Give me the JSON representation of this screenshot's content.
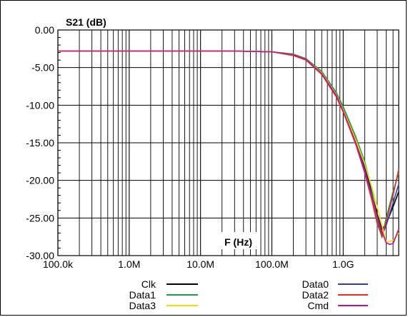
{
  "chart_data": {
    "type": "line",
    "ylabel": "S21 (dB)",
    "xlabel": "F (Hz)",
    "x_scale": "log",
    "xlim": [
      100000,
      6000000000
    ],
    "ylim": [
      -30,
      0
    ],
    "grid": true,
    "x_ticks": [
      {
        "value": 100000,
        "label": "100.0k"
      },
      {
        "value": 1000000,
        "label": "1.0M"
      },
      {
        "value": 10000000,
        "label": "10.0M"
      },
      {
        "value": 100000000,
        "label": "100.0M"
      },
      {
        "value": 1000000000,
        "label": "1.0G"
      }
    ],
    "y_ticks": [
      {
        "value": 0,
        "label": "0.00"
      },
      {
        "value": -5,
        "label": "-5.00"
      },
      {
        "value": -10,
        "label": "-10.00"
      },
      {
        "value": -15,
        "label": "-15.00"
      },
      {
        "value": -20,
        "label": "-20.00"
      },
      {
        "value": -25,
        "label": "-25.00"
      },
      {
        "value": -30,
        "label": "-30.00"
      }
    ],
    "series": [
      {
        "name": "Clk",
        "color": "#000000",
        "x": [
          100000,
          30000000,
          100000000,
          200000000,
          300000000,
          500000000,
          800000000,
          1000000000,
          1500000000,
          2000000000,
          2500000000,
          3000000000,
          3500000000,
          4000000000,
          5000000000,
          6000000000
        ],
        "y": [
          -2.8,
          -2.8,
          -2.9,
          -3.3,
          -3.9,
          -5.7,
          -8.6,
          -10.5,
          -14.5,
          -18.2,
          -21.5,
          -24.5,
          -26.5,
          -25.8,
          -23.5,
          -21.5
        ]
      },
      {
        "name": "Data0",
        "color": "#2a3db8",
        "x": [
          100000,
          30000000,
          100000000,
          200000000,
          300000000,
          500000000,
          800000000,
          1000000000,
          1500000000,
          2000000000,
          2500000000,
          3000000000,
          3500000000,
          4000000000,
          5000000000,
          6000000000
        ],
        "y": [
          -2.8,
          -2.8,
          -2.9,
          -3.3,
          -3.9,
          -5.8,
          -8.8,
          -10.7,
          -14.8,
          -18.5,
          -21.8,
          -25.0,
          -27.3,
          -26.0,
          -23.0,
          -20.5
        ]
      },
      {
        "name": "Data1",
        "color": "#1e9a4a",
        "x": [
          100000,
          30000000,
          100000000,
          200000000,
          300000000,
          500000000,
          800000000,
          1000000000,
          1500000000,
          2000000000,
          2500000000,
          3000000000,
          3500000000,
          4000000000,
          5000000000,
          6000000000
        ],
        "y": [
          -2.8,
          -2.8,
          -2.9,
          -3.2,
          -3.8,
          -5.5,
          -8.3,
          -10.2,
          -14.2,
          -17.5,
          -21.0,
          -25.5,
          -27.6,
          -25.0,
          -21.5,
          -19.0
        ]
      },
      {
        "name": "Data2",
        "color": "#e03020",
        "x": [
          100000,
          30000000,
          100000000,
          200000000,
          300000000,
          500000000,
          800000000,
          1000000000,
          1500000000,
          2000000000,
          2500000000,
          3000000000,
          3500000000,
          4000000000,
          5000000000,
          6000000000
        ],
        "y": [
          -2.8,
          -2.8,
          -2.9,
          -3.4,
          -4.0,
          -5.9,
          -8.9,
          -10.9,
          -15.2,
          -19.0,
          -22.5,
          -25.8,
          -27.4,
          -25.5,
          -22.0,
          -18.5
        ]
      },
      {
        "name": "Data3",
        "color": "#f0e000",
        "x": [
          100000,
          30000000,
          100000000,
          200000000,
          300000000,
          500000000,
          800000000,
          1000000000,
          1500000000,
          2000000000,
          2500000000,
          3000000000,
          3500000000,
          4000000000,
          5000000000,
          6000000000
        ],
        "y": [
          -2.8,
          -2.8,
          -2.9,
          -3.3,
          -3.9,
          -5.7,
          -8.6,
          -10.6,
          -14.6,
          -17.8,
          -20.8,
          -23.5,
          -26.0,
          -28.2,
          -28.0,
          -27.0
        ]
      },
      {
        "name": "Cmd",
        "color": "#c8108c",
        "x": [
          100000,
          30000000,
          100000000,
          200000000,
          300000000,
          500000000,
          800000000,
          1000000000,
          1500000000,
          2000000000,
          2500000000,
          3000000000,
          3500000000,
          4000000000,
          4500000000,
          5000000000,
          6000000000
        ],
        "y": [
          -2.8,
          -2.8,
          -2.9,
          -3.3,
          -3.9,
          -5.8,
          -8.7,
          -10.8,
          -15.0,
          -18.8,
          -22.0,
          -24.8,
          -26.8,
          -28.3,
          -28.5,
          -28.4,
          -26.5
        ]
      }
    ]
  }
}
